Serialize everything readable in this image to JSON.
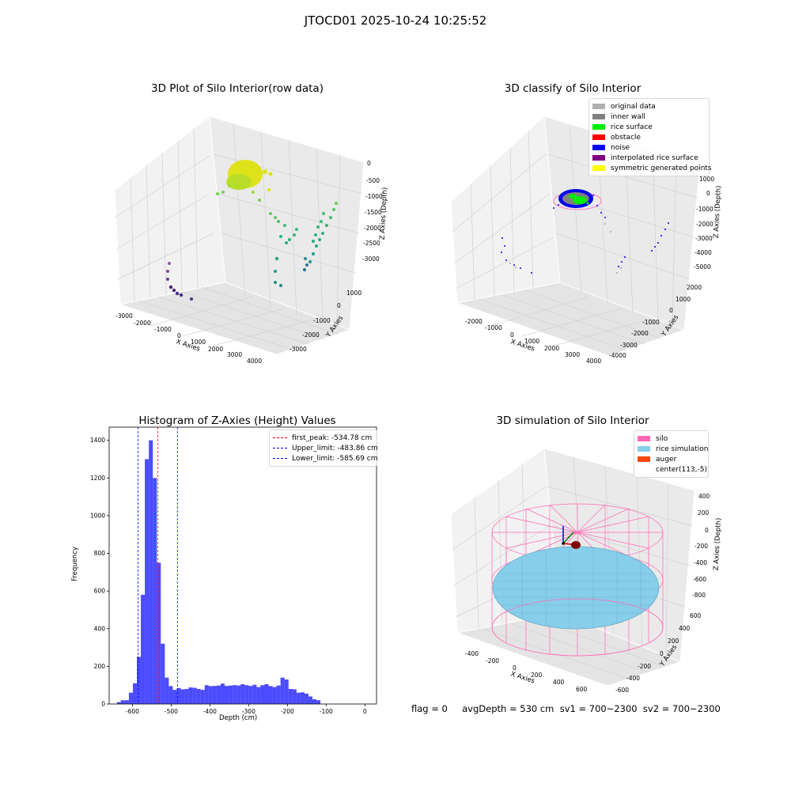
{
  "suptitle": "JTOCD01 2025-10-24 10:25:52",
  "footer": "flag = 0     avgDepth = 530 cm  sv1 = 700~2300  sv2 = 700~2300",
  "panels": {
    "raw": {
      "title": "3D Plot of Silo Interior(row data)",
      "xlabel": "X Axies",
      "ylabel": "Y Axies",
      "zlabel": "Z Axies (Depth)",
      "xticks": [
        "-3000",
        "-2000",
        "-1000",
        "0",
        "1000",
        "2000",
        "3000",
        "4000"
      ],
      "yticks": [
        "1000",
        "0",
        "-1000",
        "-2000",
        "-3000"
      ],
      "zticks": [
        "0",
        "-500",
        "-1000",
        "-1500",
        "-2000",
        "-2500",
        "-3000"
      ]
    },
    "classify": {
      "title": "3D classify of Silo Interior",
      "xlabel": "X Axies",
      "ylabel": "Y Axies",
      "zlabel": "Z Axies (Depth)",
      "xticks": [
        "-2000",
        "-1000",
        "0",
        "1000",
        "2000",
        "3000",
        "4000"
      ],
      "yticks": [
        "2000",
        "1000",
        "0",
        "-1000",
        "-2000",
        "-3000",
        "-4000"
      ],
      "zticks": [
        "1000",
        "0",
        "-1000",
        "-2000",
        "-3000",
        "-4000",
        "-5000"
      ],
      "legend": [
        {
          "label": "original data",
          "color": "#b0b0b0"
        },
        {
          "label": "inner wall",
          "color": "#808080"
        },
        {
          "label": "rice surface",
          "color": "#00ee00"
        },
        {
          "label": "obstacle",
          "color": "#ff0000"
        },
        {
          "label": "noise",
          "color": "#0000ee"
        },
        {
          "label": "interpolated rice surface",
          "color": "#800080"
        },
        {
          "label": "symmetric generated points",
          "color": "#ffff00"
        }
      ]
    },
    "simulation": {
      "title": "3D simulation of Silo Interior",
      "xlabel": "X Axies",
      "ylabel": "Y Axies",
      "zlabel": "Z Axies (Depth)",
      "xticks": [
        "-400",
        "-200",
        "0",
        "200",
        "400",
        "600"
      ],
      "yticks": [
        "600",
        "400",
        "200",
        "0",
        "-200",
        "-400",
        "-600"
      ],
      "zticks": [
        "400",
        "200",
        "0",
        "-200",
        "-400",
        "-600",
        "-800"
      ],
      "legend": [
        {
          "label": "silo",
          "color": "#ff69b4"
        },
        {
          "label": "rice simulation",
          "color": "#87ceeb"
        },
        {
          "label": "auger",
          "color": "#ff4500"
        },
        {
          "label": "center(113,-5)",
          "color": "transparent"
        }
      ]
    }
  },
  "chart_data": {
    "type": "bar",
    "title": "Histogram of Z-Axies (Height) Values",
    "xlabel": "Depth (cm)",
    "ylabel": "Frequency",
    "xlim": [
      -660,
      30
    ],
    "ylim": [
      0,
      1470
    ],
    "xticks": [
      -600,
      -500,
      -400,
      -300,
      -200,
      -100,
      0
    ],
    "yticks": [
      0,
      200,
      400,
      600,
      800,
      1000,
      1200,
      1400
    ],
    "bar_color": "#0000ff",
    "bin_start": -640,
    "bin_width": 10.3,
    "values": [
      10,
      20,
      20,
      60,
      110,
      250,
      580,
      1300,
      1400,
      1200,
      750,
      320,
      140,
      95,
      75,
      85,
      78,
      80,
      88,
      86,
      80,
      75,
      100,
      95,
      96,
      98,
      108,
      96,
      98,
      100,
      98,
      105,
      100,
      96,
      102,
      90,
      100,
      105,
      95,
      90,
      98,
      140,
      130,
      80,
      78,
      60,
      62,
      55,
      40,
      25,
      20
    ],
    "vlines": [
      {
        "label": "first_peak: -534.78 cm",
        "x": -534.78,
        "color": "#ff0000"
      },
      {
        "label": "Upper_limit: -483.86 cm",
        "x": -483.86,
        "color": "#0000ff"
      },
      {
        "label": "Lower_limit: -585.69 cm",
        "x": -585.69,
        "color": "#0000ff"
      }
    ]
  }
}
